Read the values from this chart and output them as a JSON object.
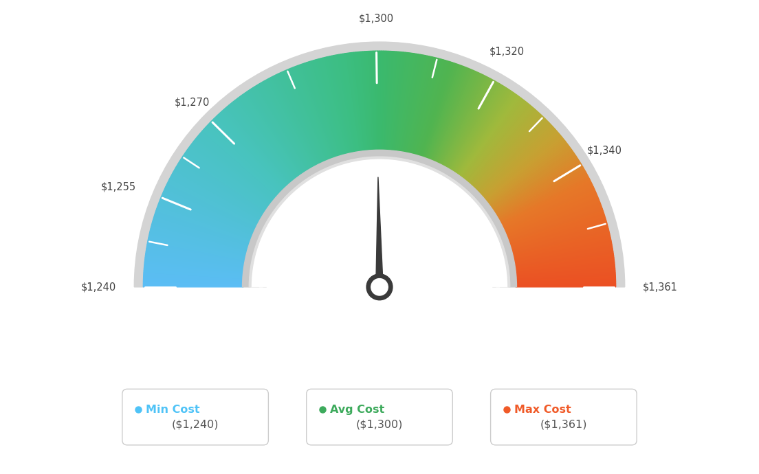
{
  "min_val": 1240,
  "max_val": 1361,
  "avg_val": 1300,
  "tick_labels": [
    "$1,240",
    "$1,255",
    "$1,270",
    "$1,300",
    "$1,320",
    "$1,340",
    "$1,361"
  ],
  "tick_values": [
    1240,
    1255,
    1270,
    1300,
    1320,
    1340,
    1361
  ],
  "legend": [
    {
      "label": "Min Cost",
      "value": "($1,240)",
      "color": "#4fc3f7"
    },
    {
      "label": "Avg Cost",
      "value": "($1,300)",
      "color": "#3daa5c"
    },
    {
      "label": "Max Cost",
      "value": "($1,361)",
      "color": "#f05a28"
    }
  ],
  "background_color": "#ffffff",
  "needle_value": 1300,
  "color_stops": [
    [
      0.0,
      [
        91,
        189,
        245
      ]
    ],
    [
      0.25,
      [
        72,
        195,
        190
      ]
    ],
    [
      0.45,
      [
        60,
        190,
        130
      ]
    ],
    [
      0.5,
      [
        58,
        185,
        110
      ]
    ],
    [
      0.6,
      [
        80,
        180,
        80
      ]
    ],
    [
      0.7,
      [
        160,
        185,
        60
      ]
    ],
    [
      0.78,
      [
        200,
        160,
        50
      ]
    ],
    [
      0.85,
      [
        230,
        120,
        40
      ]
    ],
    [
      1.0,
      [
        235,
        80,
        35
      ]
    ]
  ]
}
